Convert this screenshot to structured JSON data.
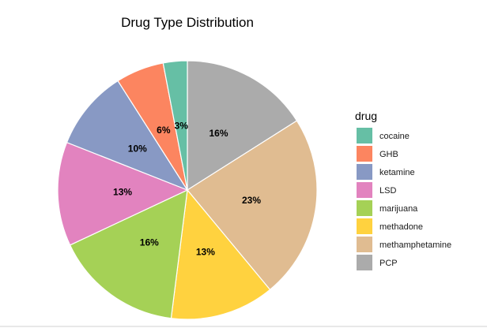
{
  "chart_data": {
    "type": "pie",
    "title": "Drug Type Distribution",
    "legend_title": "drug",
    "legend_position": "right",
    "slices": [
      {
        "name": "PCP",
        "value": 16,
        "label": "16%",
        "color": "#ABABAB"
      },
      {
        "name": "methamphetamine",
        "value": 23,
        "label": "23%",
        "color": "#E0BC91"
      },
      {
        "name": "methadone",
        "value": 13,
        "label": "13%",
        "color": "#FFD23F"
      },
      {
        "name": "marijuana",
        "value": 16,
        "label": "16%",
        "color": "#A5D156"
      },
      {
        "name": "LSD",
        "value": 13,
        "label": "13%",
        "color": "#E283BF"
      },
      {
        "name": "ketamine",
        "value": 10,
        "label": "10%",
        "color": "#8899C4"
      },
      {
        "name": "GHB",
        "value": 6,
        "label": "6%",
        "color": "#FC8560"
      },
      {
        "name": "cocaine",
        "value": 3,
        "label": "3%",
        "color": "#66BFA5"
      }
    ],
    "legend_order": [
      "cocaine",
      "GHB",
      "ketamine",
      "LSD",
      "marijuana",
      "methadone",
      "methamphetamine",
      "PCP"
    ]
  }
}
